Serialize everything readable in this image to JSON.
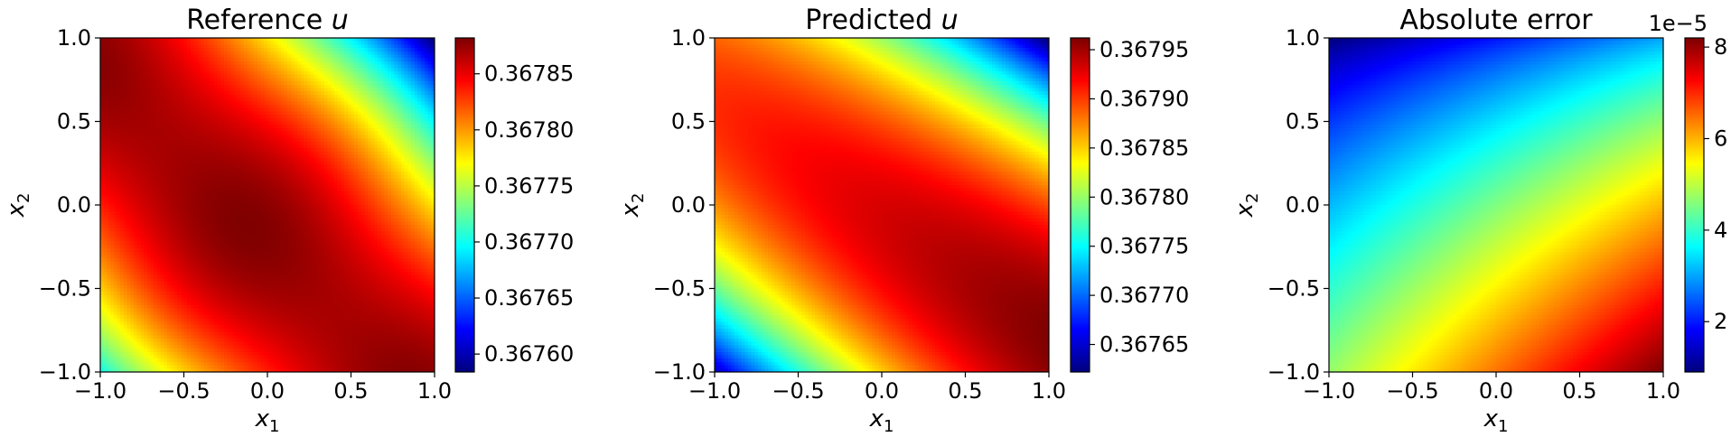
{
  "chart_data": [
    {
      "type": "heatmap",
      "title": "Reference u",
      "xlabel": "x1",
      "ylabel": "x2",
      "xlim": [
        -1.0,
        1.0
      ],
      "ylim": [
        -1.0,
        1.0
      ],
      "xticks": [
        "−1.0",
        "−0.5",
        "0.0",
        "0.5",
        "1.0"
      ],
      "yticks": [
        "−1.0",
        "−0.5",
        "0.0",
        "0.5",
        "1.0"
      ],
      "colormap": "jet",
      "colorbar": {
        "range": [
          0.367584,
          0.367882
        ],
        "ticks": [
          0.3676,
          0.36765,
          0.3677,
          0.36775,
          0.3678,
          0.36785
        ],
        "tick_labels": [
          "0.36760",
          "0.36765",
          "0.36770",
          "0.36775",
          "0.36780",
          "0.36785"
        ],
        "offset_text": ""
      }
    },
    {
      "type": "heatmap",
      "title": "Predicted u",
      "xlabel": "x1",
      "ylabel": "x2",
      "xlim": [
        -1.0,
        1.0
      ],
      "ylim": [
        -1.0,
        1.0
      ],
      "xticks": [
        "−1.0",
        "−0.5",
        "0.0",
        "0.5",
        "1.0"
      ],
      "yticks": [
        "−1.0",
        "−0.5",
        "0.0",
        "0.5",
        "1.0"
      ],
      "colormap": "jet",
      "colorbar": {
        "range": [
          0.367622,
          0.367962
        ],
        "ticks": [
          0.36765,
          0.3677,
          0.36775,
          0.3678,
          0.36785,
          0.3679,
          0.36795
        ],
        "tick_labels": [
          "0.36765",
          "0.36770",
          "0.36775",
          "0.36780",
          "0.36785",
          "0.36790",
          "0.36795"
        ],
        "offset_text": ""
      }
    },
    {
      "type": "heatmap",
      "title": "Absolute error",
      "xlabel": "x1",
      "ylabel": "x2",
      "xlim": [
        -1.0,
        1.0
      ],
      "ylim": [
        -1.0,
        1.0
      ],
      "xticks": [
        "−1.0",
        "−0.5",
        "0.0",
        "0.5",
        "1.0"
      ],
      "yticks": [
        "−1.0",
        "−0.5",
        "0.0",
        "0.5",
        "1.0"
      ],
      "colormap": "jet",
      "colorbar": {
        "range": [
          0.9,
          8.2
        ],
        "ticks": [
          2,
          4,
          6,
          8
        ],
        "tick_labels": [
          "2",
          "4",
          "6",
          "8"
        ],
        "offset_text": "1e−5"
      }
    }
  ]
}
